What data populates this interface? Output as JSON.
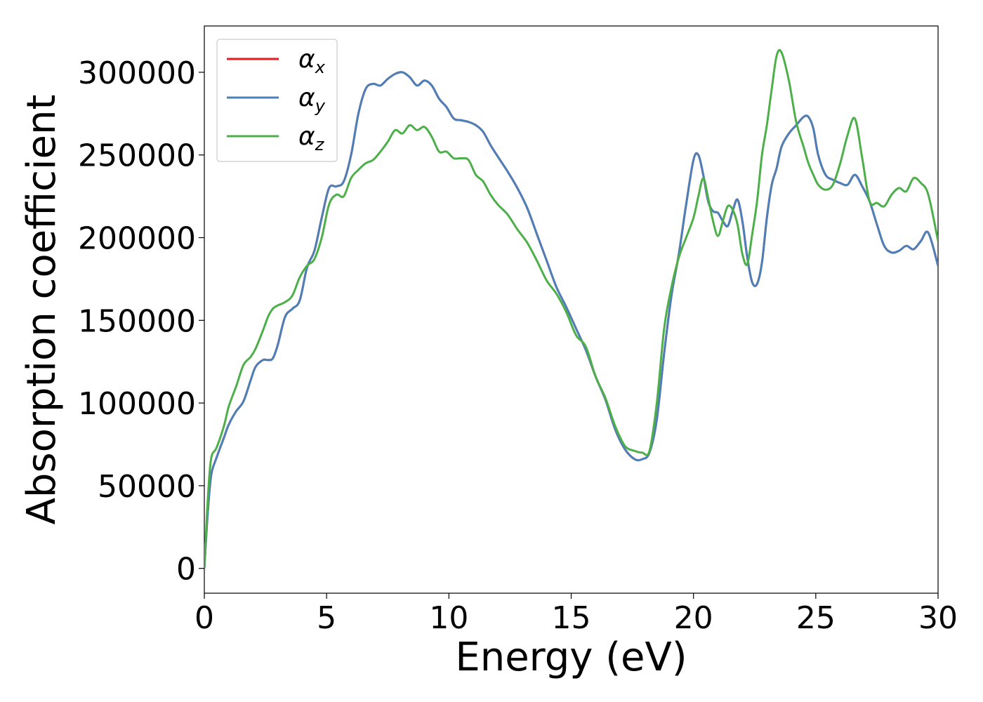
{
  "chart_data": {
    "type": "line",
    "title": "",
    "xlabel": "Energy (eV)",
    "ylabel": "Absorption coefficient",
    "xlim": [
      0,
      30
    ],
    "ylim": [
      -15000,
      328000
    ],
    "xticks": [
      0,
      5,
      10,
      15,
      20,
      25,
      30
    ],
    "yticks": [
      0,
      50000,
      100000,
      150000,
      200000,
      250000,
      300000
    ],
    "grid": false,
    "legend_position": "top-left",
    "series": [
      {
        "name": "α",
        "subscript": "x",
        "color": "#e41a1c",
        "x": [
          0,
          0.1,
          0.2,
          0.3,
          0.5,
          0.8,
          1.0,
          1.3,
          1.6,
          1.9,
          2.1,
          2.4,
          2.6,
          2.8,
          3.0,
          3.3,
          3.6,
          3.9,
          4.2,
          4.5,
          4.8,
          5.1,
          5.4,
          5.7,
          6.0,
          6.3,
          6.6,
          6.9,
          7.2,
          7.5,
          7.8,
          8.1,
          8.4,
          8.7,
          9.0,
          9.3,
          9.6,
          9.9,
          10.2,
          10.5,
          10.8,
          11.1,
          11.4,
          11.7,
          12.0,
          12.4,
          12.8,
          13.2,
          13.6,
          14.0,
          14.4,
          14.8,
          15.2,
          15.6,
          16.0,
          16.4,
          16.8,
          17.2,
          17.6,
          17.9,
          18.2,
          18.5,
          18.8,
          19.1,
          19.4,
          19.7,
          20.0,
          20.2,
          20.4,
          20.6,
          20.8,
          21.0,
          21.2,
          21.4,
          21.6,
          21.8,
          22.0,
          22.2,
          22.4,
          22.6,
          22.8,
          23.0,
          23.2,
          23.4,
          23.6,
          23.9,
          24.2,
          24.5,
          24.7,
          24.9,
          25.1,
          25.4,
          25.7,
          26.0,
          26.3,
          26.6,
          26.9,
          27.2,
          27.5,
          27.8,
          28.1,
          28.4,
          28.7,
          29.0,
          29.3,
          29.6,
          30.0
        ],
        "values": [
          0,
          25000,
          45000,
          58000,
          67000,
          79000,
          87000,
          95000,
          101000,
          114000,
          122000,
          126000,
          126000,
          127000,
          135000,
          152000,
          157000,
          162000,
          182000,
          192000,
          212000,
          230000,
          231000,
          234000,
          250000,
          275000,
          290000,
          293000,
          292000,
          296000,
          299000,
          300000,
          297000,
          292000,
          295000,
          292000,
          284000,
          279000,
          272000,
          271000,
          270000,
          268000,
          264000,
          256000,
          249000,
          240000,
          230000,
          218000,
          202000,
          186000,
          170000,
          158000,
          145000,
          132000,
          116000,
          102000,
          84000,
          72000,
          66000,
          66000,
          70000,
          90000,
          130000,
          165000,
          190000,
          220000,
          247000,
          250000,
          238000,
          222000,
          216000,
          215000,
          210000,
          207000,
          216000,
          223000,
          210000,
          188000,
          173000,
          172000,
          185000,
          212000,
          232000,
          242000,
          255000,
          263000,
          268000,
          273000,
          273000,
          266000,
          250000,
          238000,
          235000,
          233000,
          232000,
          238000,
          231000,
          222000,
          208000,
          195000,
          191000,
          192000,
          195000,
          193000,
          198000,
          203000,
          183000
        ]
      },
      {
        "name": "α",
        "subscript": "y",
        "color": "#4b80b8",
        "x": [
          0,
          0.1,
          0.2,
          0.3,
          0.5,
          0.8,
          1.0,
          1.3,
          1.6,
          1.9,
          2.1,
          2.4,
          2.6,
          2.8,
          3.0,
          3.3,
          3.6,
          3.9,
          4.2,
          4.5,
          4.8,
          5.1,
          5.4,
          5.7,
          6.0,
          6.3,
          6.6,
          6.9,
          7.2,
          7.5,
          7.8,
          8.1,
          8.4,
          8.7,
          9.0,
          9.3,
          9.6,
          9.9,
          10.2,
          10.5,
          10.8,
          11.1,
          11.4,
          11.7,
          12.0,
          12.4,
          12.8,
          13.2,
          13.6,
          14.0,
          14.4,
          14.8,
          15.2,
          15.6,
          16.0,
          16.4,
          16.8,
          17.2,
          17.6,
          17.9,
          18.2,
          18.5,
          18.8,
          19.1,
          19.4,
          19.7,
          20.0,
          20.2,
          20.4,
          20.6,
          20.8,
          21.0,
          21.2,
          21.4,
          21.6,
          21.8,
          22.0,
          22.2,
          22.4,
          22.6,
          22.8,
          23.0,
          23.2,
          23.4,
          23.6,
          23.9,
          24.2,
          24.5,
          24.7,
          24.9,
          25.1,
          25.4,
          25.7,
          26.0,
          26.3,
          26.6,
          26.9,
          27.2,
          27.5,
          27.8,
          28.1,
          28.4,
          28.7,
          29.0,
          29.3,
          29.6,
          30.0
        ],
        "values": [
          0,
          25000,
          45000,
          58000,
          67000,
          79000,
          87000,
          95000,
          101000,
          114000,
          122000,
          126000,
          126000,
          127000,
          135000,
          152000,
          157000,
          162000,
          182000,
          192000,
          212000,
          230000,
          231000,
          234000,
          250000,
          275000,
          290000,
          293000,
          292000,
          296000,
          299000,
          300000,
          297000,
          292000,
          295000,
          292000,
          284000,
          279000,
          272000,
          271000,
          270000,
          268000,
          264000,
          256000,
          249000,
          240000,
          230000,
          218000,
          202000,
          186000,
          170000,
          158000,
          145000,
          132000,
          116000,
          102000,
          84000,
          72000,
          66000,
          66000,
          70000,
          90000,
          130000,
          165000,
          190000,
          220000,
          247000,
          250000,
          238000,
          222000,
          216000,
          215000,
          210000,
          207000,
          216000,
          223000,
          210000,
          188000,
          173000,
          172000,
          185000,
          212000,
          232000,
          242000,
          255000,
          263000,
          268000,
          273000,
          273000,
          266000,
          250000,
          238000,
          235000,
          233000,
          232000,
          238000,
          231000,
          222000,
          208000,
          195000,
          191000,
          192000,
          195000,
          193000,
          198000,
          203000,
          183000
        ]
      },
      {
        "name": "α",
        "subscript": "z",
        "color": "#4daf4a",
        "x": [
          0,
          0.1,
          0.2,
          0.3,
          0.5,
          0.8,
          1.0,
          1.3,
          1.6,
          1.9,
          2.1,
          2.4,
          2.6,
          2.8,
          3.0,
          3.3,
          3.6,
          3.9,
          4.2,
          4.5,
          4.8,
          5.1,
          5.4,
          5.7,
          6.0,
          6.3,
          6.6,
          6.9,
          7.2,
          7.5,
          7.8,
          8.1,
          8.4,
          8.7,
          9.0,
          9.3,
          9.6,
          9.9,
          10.2,
          10.5,
          10.8,
          11.1,
          11.4,
          11.7,
          12.0,
          12.4,
          12.8,
          13.2,
          13.6,
          14.0,
          14.4,
          14.8,
          15.2,
          15.6,
          16.0,
          16.4,
          16.8,
          17.2,
          17.6,
          17.9,
          18.2,
          18.5,
          18.8,
          19.1,
          19.4,
          19.7,
          20.0,
          20.2,
          20.4,
          20.6,
          20.8,
          21.0,
          21.2,
          21.4,
          21.6,
          21.8,
          22.0,
          22.2,
          22.4,
          22.6,
          22.8,
          23.0,
          23.2,
          23.4,
          23.6,
          23.9,
          24.2,
          24.5,
          24.7,
          24.9,
          25.1,
          25.4,
          25.7,
          26.0,
          26.3,
          26.6,
          26.9,
          27.2,
          27.5,
          27.8,
          28.1,
          28.4,
          28.7,
          29.0,
          29.3,
          29.6,
          30.0
        ],
        "values": [
          0,
          30000,
          55000,
          68000,
          73000,
          86000,
          98000,
          110000,
          123000,
          128000,
          133000,
          144000,
          152000,
          157000,
          159000,
          161000,
          165000,
          176000,
          183000,
          187000,
          200000,
          220000,
          226000,
          225000,
          236000,
          241000,
          245000,
          247000,
          252000,
          258000,
          265000,
          263000,
          268000,
          265000,
          267000,
          261000,
          252000,
          252000,
          248000,
          248000,
          247000,
          238000,
          234000,
          226000,
          220000,
          214000,
          205000,
          197000,
          186000,
          174000,
          166000,
          155000,
          141000,
          134000,
          116000,
          103000,
          86000,
          74000,
          71000,
          70000,
          71000,
          100000,
          145000,
          170000,
          188000,
          200000,
          212000,
          225000,
          236000,
          224000,
          210000,
          201000,
          210000,
          219000,
          217000,
          208000,
          190000,
          184000,
          202000,
          222000,
          250000,
          268000,
          290000,
          310000,
          312000,
          295000,
          270000,
          255000,
          245000,
          238000,
          232000,
          229000,
          232000,
          245000,
          262000,
          272000,
          248000,
          222000,
          221000,
          219000,
          226000,
          230000,
          228000,
          236000,
          233000,
          226000,
          198000
        ]
      }
    ]
  }
}
